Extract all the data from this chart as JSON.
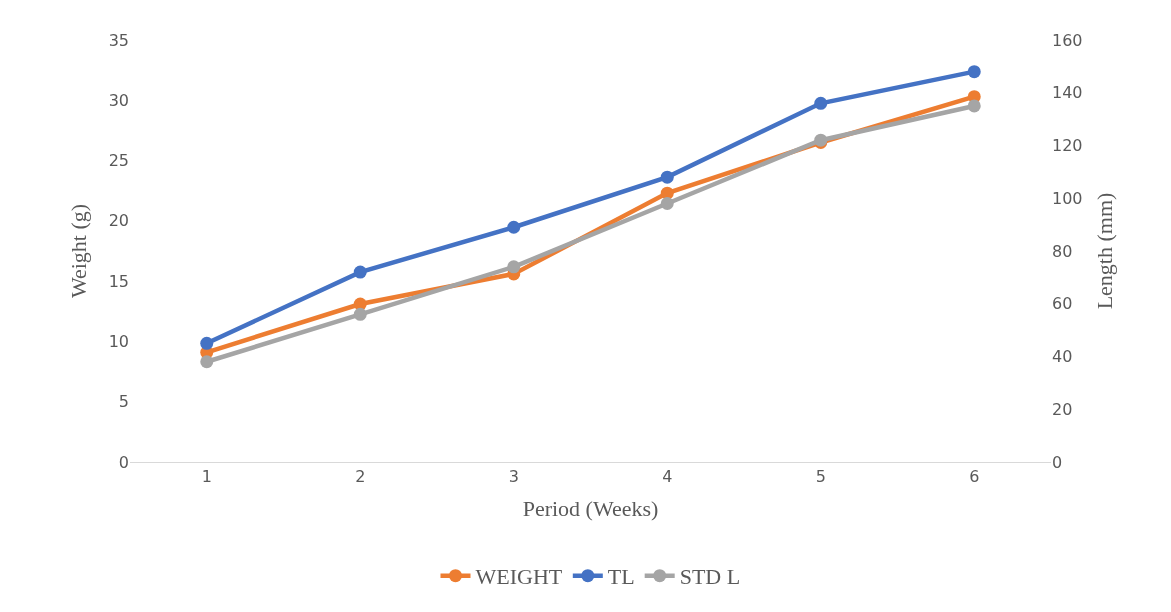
{
  "chart_data": {
    "type": "line",
    "xlabel": "Period (Weeks)",
    "ylabel": "Weight (g)",
    "y2label": "Length (mm)",
    "categories": [
      "1",
      "2",
      "3",
      "4",
      "5",
      "6"
    ],
    "series": [
      {
        "name": "WEIGHT",
        "color": "#ed7d31",
        "values": [
          9.1,
          13.1,
          15.6,
          22.3,
          26.5,
          30.3
        ]
      },
      {
        "name": "TL",
        "color": "#4472c4",
        "axis": "y2",
        "values": [
          45,
          72,
          89,
          108,
          136,
          148
        ]
      },
      {
        "name": "STD L",
        "color": "#a5a5a5",
        "axis": "y2",
        "values": [
          38,
          56,
          74,
          98,
          122,
          135
        ]
      }
    ],
    "ylim": [
      0,
      35
    ],
    "yticks": [
      0,
      5,
      10,
      15,
      20,
      25,
      30,
      35
    ],
    "y2lim": [
      0,
      160
    ],
    "y2ticks": [
      0,
      20,
      40,
      60,
      80,
      100,
      120,
      140,
      160
    ],
    "legend": "bottom",
    "marker": "circle",
    "line_style": "solid"
  }
}
